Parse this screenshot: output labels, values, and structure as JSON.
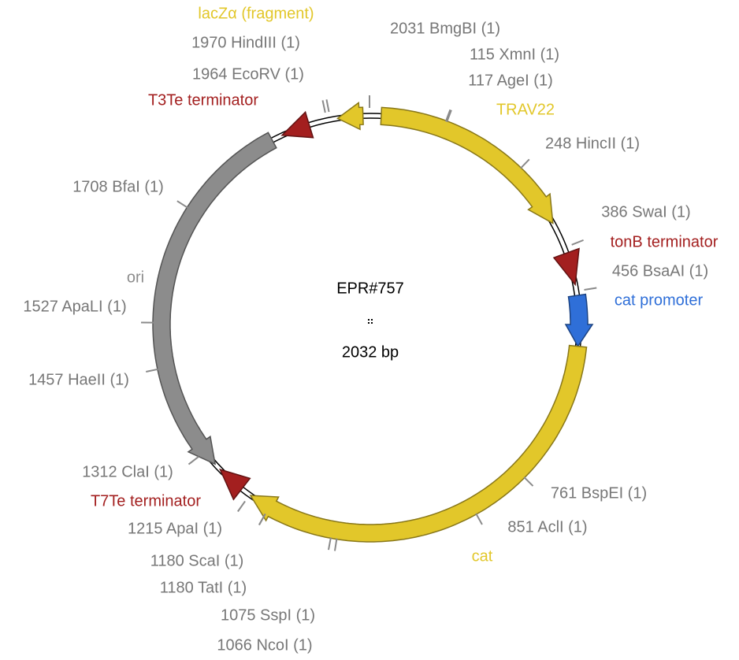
{
  "plasmid": {
    "name": "EPR#757",
    "length_label": "2032 bp"
  },
  "features": [
    {
      "label": "lacZα (fragment)",
      "color": "#e2c72a"
    },
    {
      "label": "T3Te terminator",
      "color": "#a31f1f"
    },
    {
      "label": "TRAV22",
      "color": "#e2c72a"
    },
    {
      "label": "tonB terminator",
      "color": "#a31f1f"
    },
    {
      "label": "cat promoter",
      "color": "#2f6fd8"
    },
    {
      "label": "ori",
      "color": "#8c8c8c"
    },
    {
      "label": "T7Te terminator",
      "color": "#a31f1f"
    },
    {
      "label": "cat",
      "color": "#e2c72a"
    }
  ],
  "sites": [
    {
      "label": "1970 HindIII (1)"
    },
    {
      "label": "1964 EcoRV (1)"
    },
    {
      "label": "2031 BmgBI (1)"
    },
    {
      "label": "115 XmnI (1)"
    },
    {
      "label": "117 AgeI (1)"
    },
    {
      "label": "248 HincII (1)"
    },
    {
      "label": "1708 BfaI (1)"
    },
    {
      "label": "386 SwaI (1)"
    },
    {
      "label": "456 BsaAI (1)"
    },
    {
      "label": "1527 ApaLI (1)"
    },
    {
      "label": "1457 HaeII (1)"
    },
    {
      "label": "1312 ClaI (1)"
    },
    {
      "label": "761 BspEI (1)"
    },
    {
      "label": "851 AclI (1)"
    },
    {
      "label": "1215 ApaI (1)"
    },
    {
      "label": "1180 ScaI (1)"
    },
    {
      "label": "1180 TatI (1)"
    },
    {
      "label": "1075 SspI (1)"
    },
    {
      "label": "1066 NcoI (1)"
    }
  ]
}
